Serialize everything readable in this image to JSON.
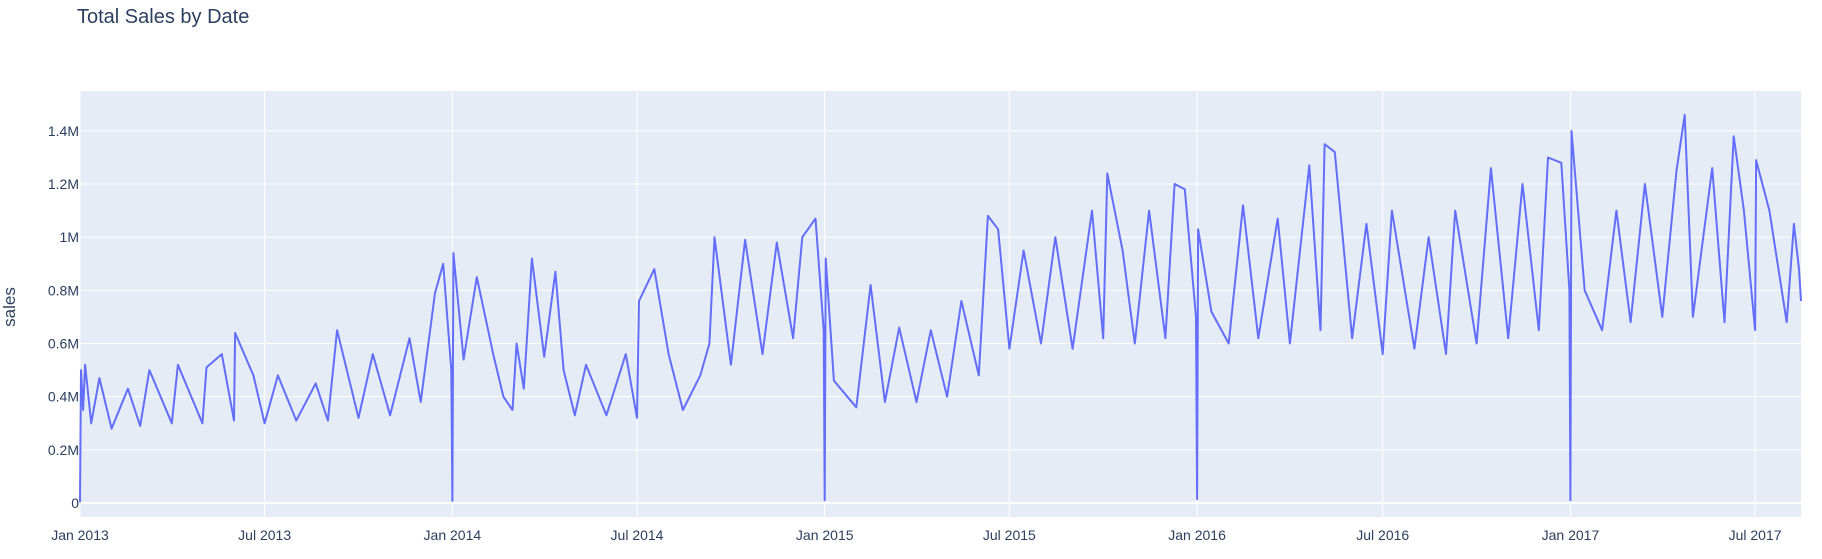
{
  "chart_data": {
    "type": "line",
    "title": "Total Sales by Date",
    "xlabel": "",
    "ylabel": "sales",
    "x_range": [
      "2013-01-01",
      "2017-08-15"
    ],
    "ylim": [
      0,
      1550000
    ],
    "grid": true,
    "x_ticks": [
      {
        "date": "2013-01-01",
        "label": "Jan 2013"
      },
      {
        "date": "2013-07-01",
        "label": "Jul 2013"
      },
      {
        "date": "2014-01-01",
        "label": "Jan 2014"
      },
      {
        "date": "2014-07-01",
        "label": "Jul 2014"
      },
      {
        "date": "2015-01-01",
        "label": "Jan 2015"
      },
      {
        "date": "2015-07-01",
        "label": "Jul 2015"
      },
      {
        "date": "2016-01-01",
        "label": "Jan 2016"
      },
      {
        "date": "2016-07-01",
        "label": "Jul 2016"
      },
      {
        "date": "2017-01-01",
        "label": "Jan 2017"
      },
      {
        "date": "2017-07-01",
        "label": "Jul 2017"
      }
    ],
    "y_ticks": [
      {
        "value": 0,
        "label": "0"
      },
      {
        "value": 200000,
        "label": "0.2M"
      },
      {
        "value": 400000,
        "label": "0.4M"
      },
      {
        "value": 600000,
        "label": "0.6M"
      },
      {
        "value": 800000,
        "label": "0.8M"
      },
      {
        "value": 1000000,
        "label": "1M"
      },
      {
        "value": 1200000,
        "label": "1.2M"
      },
      {
        "value": 1400000,
        "label": "1.4M"
      }
    ],
    "series": [
      {
        "color": "#636efa",
        "points": [
          [
            "2013-01-01",
            2500
          ],
          [
            "2013-01-02",
            500000
          ],
          [
            "2013-01-04",
            350000
          ],
          [
            "2013-01-06",
            520000
          ],
          [
            "2013-01-12",
            300000
          ],
          [
            "2013-01-20",
            470000
          ],
          [
            "2013-02-01",
            280000
          ],
          [
            "2013-02-17",
            430000
          ],
          [
            "2013-03-01",
            290000
          ],
          [
            "2013-03-10",
            500000
          ],
          [
            "2013-04-01",
            300000
          ],
          [
            "2013-04-07",
            520000
          ],
          [
            "2013-05-01",
            300000
          ],
          [
            "2013-05-05",
            510000
          ],
          [
            "2013-05-20",
            560000
          ],
          [
            "2013-06-01",
            310000
          ],
          [
            "2013-06-02",
            640000
          ],
          [
            "2013-06-20",
            480000
          ],
          [
            "2013-07-01",
            300000
          ],
          [
            "2013-07-14",
            480000
          ],
          [
            "2013-08-01",
            310000
          ],
          [
            "2013-08-20",
            450000
          ],
          [
            "2013-09-01",
            310000
          ],
          [
            "2013-09-10",
            650000
          ],
          [
            "2013-10-01",
            320000
          ],
          [
            "2013-10-15",
            560000
          ],
          [
            "2013-11-01",
            330000
          ],
          [
            "2013-11-20",
            620000
          ],
          [
            "2013-12-01",
            380000
          ],
          [
            "2013-12-15",
            790000
          ],
          [
            "2013-12-23",
            900000
          ],
          [
            "2013-12-31",
            500000
          ],
          [
            "2014-01-01",
            8000
          ],
          [
            "2014-01-02",
            940000
          ],
          [
            "2014-01-12",
            540000
          ],
          [
            "2014-01-25",
            850000
          ],
          [
            "2014-02-10",
            560000
          ],
          [
            "2014-02-20",
            400000
          ],
          [
            "2014-03-01",
            350000
          ],
          [
            "2014-03-05",
            600000
          ],
          [
            "2014-03-12",
            430000
          ],
          [
            "2014-03-20",
            920000
          ],
          [
            "2014-04-01",
            550000
          ],
          [
            "2014-04-12",
            870000
          ],
          [
            "2014-04-20",
            500000
          ],
          [
            "2014-05-01",
            330000
          ],
          [
            "2014-05-12",
            520000
          ],
          [
            "2014-06-01",
            330000
          ],
          [
            "2014-06-20",
            560000
          ],
          [
            "2014-07-01",
            320000
          ],
          [
            "2014-07-03",
            760000
          ],
          [
            "2014-07-18",
            880000
          ],
          [
            "2014-08-01",
            560000
          ],
          [
            "2014-08-15",
            350000
          ],
          [
            "2014-09-01",
            480000
          ],
          [
            "2014-09-10",
            600000
          ],
          [
            "2014-09-15",
            1000000
          ],
          [
            "2014-10-01",
            520000
          ],
          [
            "2014-10-15",
            990000
          ],
          [
            "2014-11-01",
            560000
          ],
          [
            "2014-11-15",
            980000
          ],
          [
            "2014-12-01",
            620000
          ],
          [
            "2014-12-10",
            1000000
          ],
          [
            "2014-12-23",
            1070000
          ],
          [
            "2014-12-31",
            650000
          ],
          [
            "2015-01-01",
            10000
          ],
          [
            "2015-01-02",
            920000
          ],
          [
            "2015-01-10",
            460000
          ],
          [
            "2015-02-01",
            360000
          ],
          [
            "2015-02-15",
            820000
          ],
          [
            "2015-03-01",
            380000
          ],
          [
            "2015-03-15",
            660000
          ],
          [
            "2015-04-01",
            380000
          ],
          [
            "2015-04-15",
            650000
          ],
          [
            "2015-05-01",
            400000
          ],
          [
            "2015-05-15",
            760000
          ],
          [
            "2015-06-01",
            480000
          ],
          [
            "2015-06-10",
            1080000
          ],
          [
            "2015-06-20",
            1030000
          ],
          [
            "2015-07-01",
            580000
          ],
          [
            "2015-07-15",
            950000
          ],
          [
            "2015-08-01",
            600000
          ],
          [
            "2015-08-15",
            1000000
          ],
          [
            "2015-09-01",
            580000
          ],
          [
            "2015-09-20",
            1100000
          ],
          [
            "2015-10-01",
            620000
          ],
          [
            "2015-10-05",
            1240000
          ],
          [
            "2015-10-20",
            950000
          ],
          [
            "2015-11-01",
            600000
          ],
          [
            "2015-11-15",
            1100000
          ],
          [
            "2015-12-01",
            620000
          ],
          [
            "2015-12-10",
            1200000
          ],
          [
            "2015-12-20",
            1180000
          ],
          [
            "2015-12-31",
            700000
          ],
          [
            "2016-01-01",
            15000
          ],
          [
            "2016-01-02",
            1030000
          ],
          [
            "2016-01-15",
            720000
          ],
          [
            "2016-02-01",
            600000
          ],
          [
            "2016-02-15",
            1120000
          ],
          [
            "2016-03-01",
            620000
          ],
          [
            "2016-03-20",
            1070000
          ],
          [
            "2016-04-01",
            600000
          ],
          [
            "2016-04-20",
            1270000
          ],
          [
            "2016-05-01",
            650000
          ],
          [
            "2016-05-05",
            1350000
          ],
          [
            "2016-05-15",
            1320000
          ],
          [
            "2016-06-01",
            620000
          ],
          [
            "2016-06-15",
            1050000
          ],
          [
            "2016-07-01",
            560000
          ],
          [
            "2016-07-10",
            1100000
          ],
          [
            "2016-08-01",
            580000
          ],
          [
            "2016-08-15",
            1000000
          ],
          [
            "2016-09-01",
            560000
          ],
          [
            "2016-09-10",
            1100000
          ],
          [
            "2016-10-01",
            600000
          ],
          [
            "2016-10-15",
            1260000
          ],
          [
            "2016-11-01",
            620000
          ],
          [
            "2016-11-15",
            1200000
          ],
          [
            "2016-12-01",
            650000
          ],
          [
            "2016-12-10",
            1300000
          ],
          [
            "2016-12-23",
            1280000
          ],
          [
            "2016-12-31",
            800000
          ],
          [
            "2017-01-01",
            10000
          ],
          [
            "2017-01-02",
            1400000
          ],
          [
            "2017-01-15",
            800000
          ],
          [
            "2017-02-01",
            650000
          ],
          [
            "2017-02-15",
            1100000
          ],
          [
            "2017-03-01",
            680000
          ],
          [
            "2017-03-15",
            1200000
          ],
          [
            "2017-04-01",
            700000
          ],
          [
            "2017-04-15",
            1250000
          ],
          [
            "2017-04-23",
            1460000
          ],
          [
            "2017-05-01",
            700000
          ],
          [
            "2017-05-20",
            1260000
          ],
          [
            "2017-06-01",
            680000
          ],
          [
            "2017-06-10",
            1380000
          ],
          [
            "2017-06-20",
            1100000
          ],
          [
            "2017-07-01",
            650000
          ],
          [
            "2017-07-02",
            1290000
          ],
          [
            "2017-07-15",
            1100000
          ],
          [
            "2017-08-01",
            680000
          ],
          [
            "2017-08-08",
            1050000
          ],
          [
            "2017-08-13",
            880000
          ],
          [
            "2017-08-15",
            760000
          ]
        ]
      }
    ]
  }
}
